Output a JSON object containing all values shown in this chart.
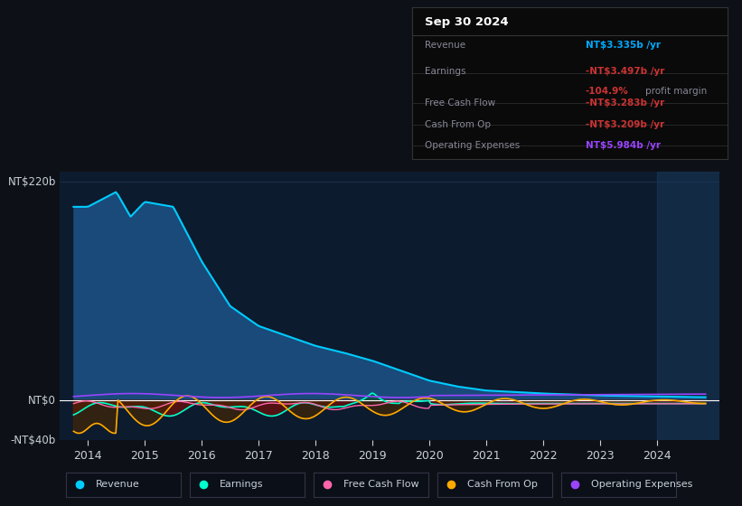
{
  "bg_color": "#0d1117",
  "plot_bg_color": "#0d1b2e",
  "grid_color": "#1e3050",
  "text_color": "#c8d0d8",
  "title_text": "Sep 30 2024",
  "ylim": [
    -40,
    230
  ],
  "revenue_color": "#00ccff",
  "earnings_color": "#00ffcc",
  "fcf_color": "#ff66aa",
  "cashfromop_color": "#ffaa00",
  "opex_color": "#9944ff",
  "revenue_fill_color": "#1a4a7a",
  "earnings_fill_neg_color": "#5a1010",
  "earnings_fill_pos_color": "#005533",
  "cashfromop_fill_color": "#4a2800",
  "legend_items": [
    {
      "label": "Revenue",
      "color": "#00ccff"
    },
    {
      "label": "Earnings",
      "color": "#00ffcc"
    },
    {
      "label": "Free Cash Flow",
      "color": "#ff66aa"
    },
    {
      "label": "Cash From Op",
      "color": "#ffaa00"
    },
    {
      "label": "Operating Expenses",
      "color": "#9944ff"
    }
  ],
  "info_box": {
    "title": "Sep 30 2024",
    "rows": [
      {
        "label": "Revenue",
        "value": "NT$3.335b /yr",
        "value_color": "#00aaff",
        "extra": null
      },
      {
        "label": "Earnings",
        "value": "-NT$3.497b /yr",
        "value_color": "#cc3333",
        "extra": {
          "val": "-104.9%",
          "val_color": "#cc3333",
          "txt": "profit margin",
          "txt_color": "#888899"
        }
      },
      {
        "label": "Free Cash Flow",
        "value": "-NT$3.283b /yr",
        "value_color": "#cc3333",
        "extra": null
      },
      {
        "label": "Cash From Op",
        "value": "-NT$3.209b /yr",
        "value_color": "#cc3333",
        "extra": null
      },
      {
        "label": "Operating Expenses",
        "value": "NT$5.984b /yr",
        "value_color": "#9944ff",
        "extra": null
      }
    ]
  }
}
